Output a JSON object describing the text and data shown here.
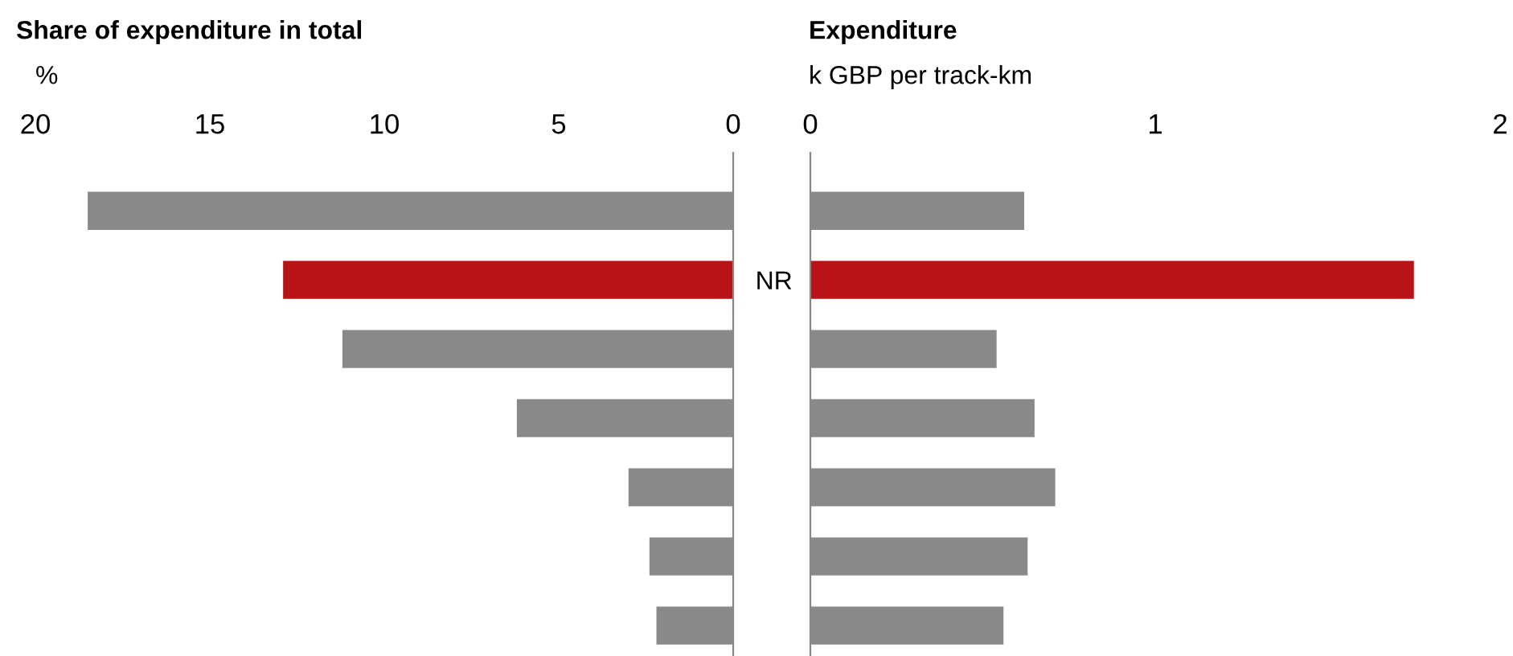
{
  "chart_data": [
    {
      "type": "bar",
      "orientation": "horizontal",
      "title": "Share of expenditure in total",
      "xlabel": "%",
      "categories": [
        null,
        null,
        null,
        null,
        null,
        null,
        null
      ],
      "values": [
        18.5,
        12.9,
        11.2,
        6.2,
        3.0,
        2.4,
        2.2
      ],
      "colors": [
        "#898989",
        "#b81316",
        "#898989",
        "#898989",
        "#898989",
        "#898989",
        "#898989"
      ],
      "xlim": [
        20,
        0
      ],
      "xticks": [
        20,
        15,
        10,
        5,
        0
      ],
      "grid": false,
      "legend": false
    },
    {
      "type": "bar",
      "orientation": "horizontal",
      "title": "Expenditure",
      "xlabel": "k GBP per track-km",
      "categories": [
        null,
        "NR",
        null,
        null,
        null,
        null,
        null
      ],
      "values": [
        0.62,
        1.75,
        0.54,
        0.65,
        0.71,
        0.63,
        0.56
      ],
      "colors": [
        "#898989",
        "#b81316",
        "#898989",
        "#898989",
        "#898989",
        "#898989",
        "#898989"
      ],
      "xlim": [
        0,
        2
      ],
      "xticks": [
        0,
        1,
        2
      ],
      "grid": false,
      "legend": false
    }
  ]
}
